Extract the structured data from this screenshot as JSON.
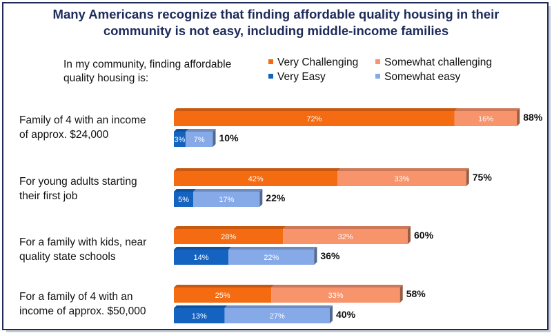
{
  "title_lines": [
    "Many Americans recognize that finding affordable quality housing in their",
    "community is not easy, including middle-income families"
  ],
  "question_lines": [
    "In my community, finding affordable",
    "quality housing is:"
  ],
  "legend": [
    {
      "label": "Very Challenging",
      "color": "#f46b12"
    },
    {
      "label": "Somewhat challenging",
      "color": "#f8946b"
    },
    {
      "label": "Very Easy",
      "color": "#1463c0"
    },
    {
      "label": "Somewhat easy",
      "color": "#86a9e8"
    }
  ],
  "chart_data": {
    "type": "bar",
    "orientation": "horizontal",
    "stacked": true,
    "xlim": [
      0,
      100
    ],
    "categories": [
      [
        "Family of 4 with an income",
        "of approx. $24,000"
      ],
      [
        "For young adults starting",
        "their first job"
      ],
      [
        "For a family with kids, near",
        "quality state schools"
      ],
      [
        "For a family of 4 with an",
        "income of approx. $50,000"
      ]
    ],
    "series": [
      {
        "name": "Very Challenging",
        "group": "challenging",
        "color": "#f46b12",
        "values": [
          72,
          42,
          28,
          25
        ]
      },
      {
        "name": "Somewhat challenging",
        "group": "challenging",
        "color": "#f8946b",
        "values": [
          16,
          33,
          32,
          33
        ]
      },
      {
        "name": "Very Easy",
        "group": "easy",
        "color": "#1463c0",
        "values": [
          3,
          5,
          14,
          13
        ]
      },
      {
        "name": "Somewhat easy",
        "group": "easy",
        "color": "#86a9e8",
        "values": [
          7,
          17,
          22,
          27
        ]
      }
    ],
    "totals": {
      "challenging": [
        "88%",
        "75%",
        "60%",
        "58%"
      ],
      "easy": [
        "10%",
        "22%",
        "36%",
        "40%"
      ]
    },
    "segment_labels": {
      "Very Challenging": [
        "72%",
        "42%",
        "28%",
        "25%"
      ],
      "Somewhat challenging": [
        "16%",
        "33%",
        "32%",
        "33%"
      ],
      "Very Easy": [
        "3%",
        "5%",
        "14%",
        "13%"
      ],
      "Somewhat easy": [
        "7%",
        "17%",
        "22%",
        "27%"
      ]
    }
  }
}
